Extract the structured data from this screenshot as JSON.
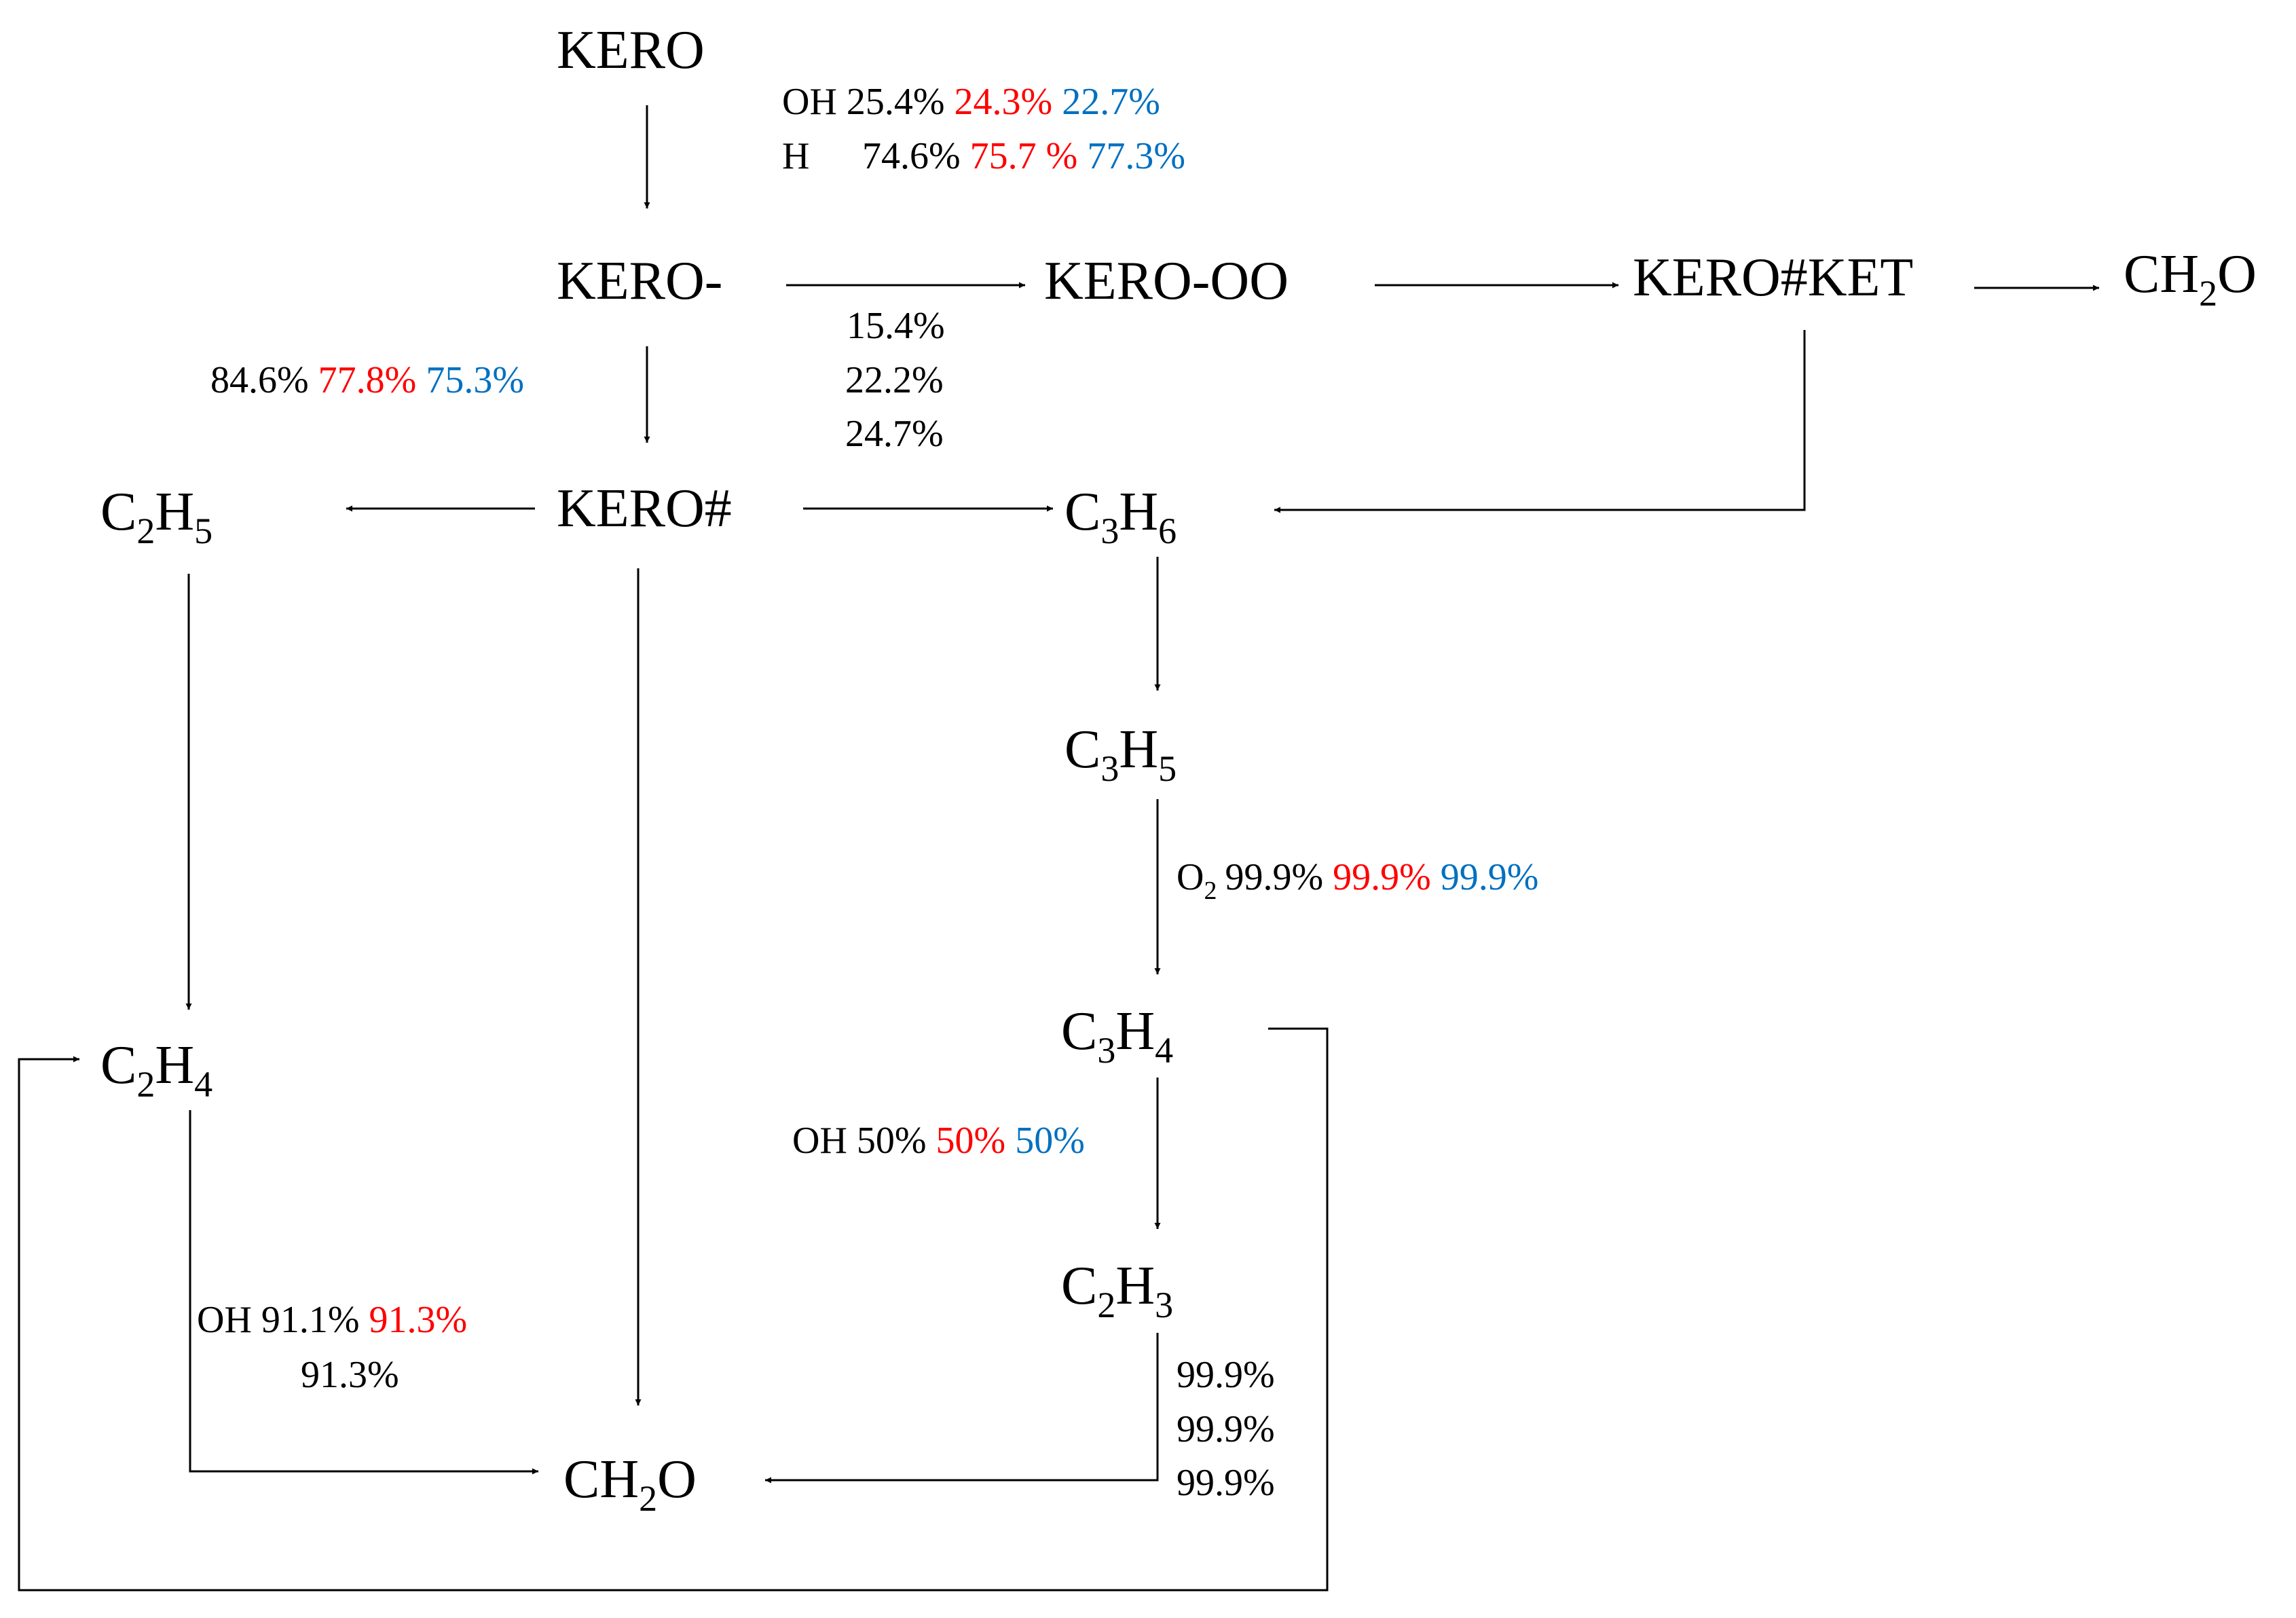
{
  "colors": {
    "black": "#000000",
    "red": "#ff0000",
    "blue": "#0070c0"
  },
  "species": {
    "kero": "KERO",
    "kero_minus": "KERO-",
    "kero_oo": "KERO-OO",
    "kero_ket": "KERO#KET",
    "ch2o_top": {
      "main": "CH",
      "sub": "2",
      "tail": "O"
    },
    "kero_hash": "KERO#",
    "c2h5": {
      "a": "C",
      "a_sub": "2",
      "b": "H",
      "b_sub": "5"
    },
    "c3h6": {
      "a": "C",
      "a_sub": "3",
      "b": "H",
      "b_sub": "6"
    },
    "c3h5": {
      "a": "C",
      "a_sub": "3",
      "b": "H",
      "b_sub": "5"
    },
    "c2h4": {
      "a": "C",
      "a_sub": "2",
      "b": "H",
      "b_sub": "4"
    },
    "c3h4": {
      "a": "C",
      "a_sub": "3",
      "b": "H",
      "b_sub": "4"
    },
    "c2h3": {
      "a": "C",
      "a_sub": "2",
      "b": "H",
      "b_sub": "3"
    },
    "ch2o_bottom": {
      "main": "CH",
      "sub": "2",
      "tail": "O"
    }
  },
  "labels": {
    "kero_oh": {
      "reactant": "OH",
      "black": "25.4%",
      "red": "24.3%",
      "blue": "22.7%"
    },
    "kero_h": {
      "reactant": "H",
      "black": "74.6%",
      "red": "75.7 %",
      "blue": "77.3%"
    },
    "to_kero_oo": {
      "black": "15.4%",
      "red": "22.2%",
      "blue": "24.7%"
    },
    "to_kero_hash": {
      "black": "84.6%",
      "red": "77.8%",
      "blue": "75.3%"
    },
    "c3h5_o2": {
      "reactant": "O",
      "reactant_sub": "2",
      "black": "99.9%",
      "red": "99.9%",
      "blue": "99.9%"
    },
    "c3h4_oh": {
      "reactant": "OH",
      "black": "50%",
      "red": "50%",
      "blue": "50%"
    },
    "c2h4_oh": {
      "reactant": "OH",
      "black": "91.1%",
      "red": "91.3%",
      "blue": "91.3%"
    },
    "c2h3_ch2o": {
      "black": "99.9%",
      "red": "99.9%",
      "blue": "99.9%"
    }
  }
}
